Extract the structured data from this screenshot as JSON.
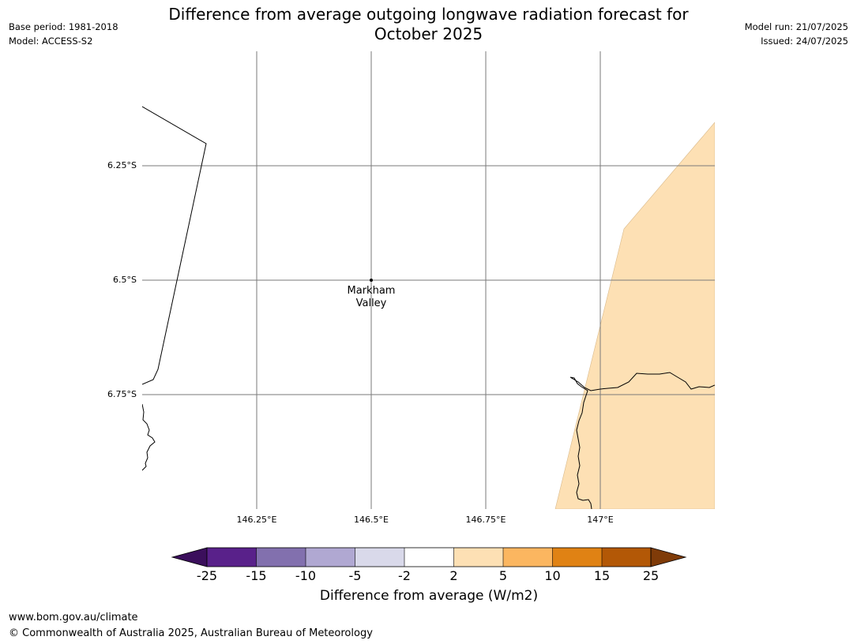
{
  "title_line1": "Difference from average outgoing longwave radiation forecast for",
  "title_line2": "October 2025",
  "base_period": "Base period: 1981-2018",
  "model": "Model: ACCESS-S2",
  "model_run": "Model run: 21/07/2025",
  "issued": "Issued: 24/07/2025",
  "map": {
    "lat_labels": [
      "6.25°S",
      "6.5°S",
      "6.75°S"
    ],
    "lon_labels": [
      "146.25°E",
      "146.5°E",
      "146.75°E",
      "147°E"
    ],
    "location_line1": "Markham",
    "location_line2": "Valley",
    "anomaly_fill_color": "#fde0b4"
  },
  "colorbar": {
    "ticks": [
      "-25",
      "-15",
      "-10",
      "-5",
      "-2",
      "2",
      "5",
      "10",
      "15",
      "25"
    ],
    "colors": [
      "#3b0f5c",
      "#59218a",
      "#8270ae",
      "#b0a8d2",
      "#d9d9ea",
      "#ffffff",
      "#fde0b4",
      "#fbb660",
      "#e08214",
      "#b35806",
      "#7f3b08"
    ],
    "label": "Difference from average (W/m2)"
  },
  "footer_url": "www.bom.gov.au/climate",
  "footer_copyright": "© Commonwealth of Australia 2025, Australian Bureau of Meteorology"
}
